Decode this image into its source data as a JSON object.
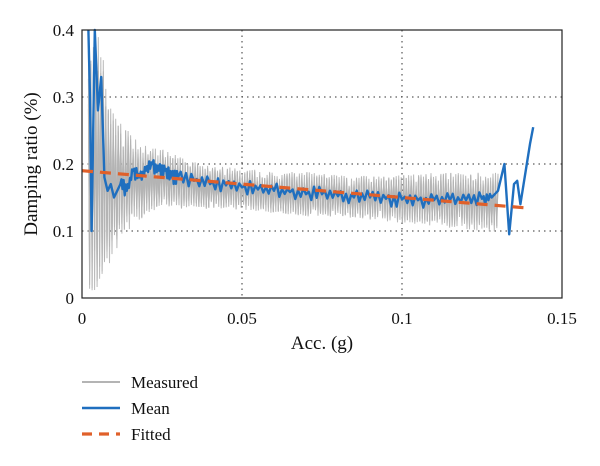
{
  "chart_data": {
    "type": "line",
    "title": "",
    "xlabel": "Acc. (g)",
    "ylabel": "Damping ratio (%)",
    "xlim": [
      0,
      0.15
    ],
    "ylim": [
      0,
      0.4
    ],
    "xticks": [
      0,
      0.05,
      0.1,
      0.15
    ],
    "yticks": [
      0,
      0.1,
      0.2,
      0.3,
      0.4
    ],
    "xtick_labels": [
      "0",
      "0.05",
      "0.1",
      "0.15"
    ],
    "ytick_labels": [
      "0",
      "0.1",
      "0.2",
      "0.3",
      "0.4"
    ],
    "grid": "dotted",
    "legend_position": "below-left",
    "series": [
      {
        "name": "Measured",
        "style": "thin-gray-band",
        "color": "#b4b4b4",
        "upper": [
          [
            0.002,
            0.4
          ],
          [
            0.004,
            0.4
          ],
          [
            0.006,
            0.4
          ],
          [
            0.008,
            0.32
          ],
          [
            0.01,
            0.28
          ],
          [
            0.015,
            0.25
          ],
          [
            0.02,
            0.23
          ],
          [
            0.025,
            0.225
          ],
          [
            0.03,
            0.215
          ],
          [
            0.035,
            0.205
          ],
          [
            0.04,
            0.2
          ],
          [
            0.05,
            0.195
          ],
          [
            0.06,
            0.19
          ],
          [
            0.07,
            0.19
          ],
          [
            0.08,
            0.185
          ],
          [
            0.09,
            0.185
          ],
          [
            0.1,
            0.185
          ],
          [
            0.11,
            0.19
          ],
          [
            0.12,
            0.19
          ],
          [
            0.13,
            0.19
          ]
        ],
        "lower": [
          [
            0.002,
            0.0
          ],
          [
            0.004,
            0.0
          ],
          [
            0.006,
            0.0
          ],
          [
            0.008,
            0.03
          ],
          [
            0.01,
            0.06
          ],
          [
            0.015,
            0.1
          ],
          [
            0.02,
            0.12
          ],
          [
            0.025,
            0.13
          ],
          [
            0.03,
            0.13
          ],
          [
            0.035,
            0.135
          ],
          [
            0.04,
            0.13
          ],
          [
            0.05,
            0.13
          ],
          [
            0.06,
            0.125
          ],
          [
            0.07,
            0.12
          ],
          [
            0.08,
            0.12
          ],
          [
            0.09,
            0.115
          ],
          [
            0.1,
            0.11
          ],
          [
            0.11,
            0.105
          ],
          [
            0.12,
            0.1
          ],
          [
            0.13,
            0.095
          ]
        ]
      },
      {
        "name": "Mean",
        "color": "#1f6fbf",
        "points": [
          [
            0.002,
            0.4
          ],
          [
            0.0025,
            0.3
          ],
          [
            0.003,
            0.1
          ],
          [
            0.0035,
            0.25
          ],
          [
            0.004,
            0.4
          ],
          [
            0.005,
            0.28
          ],
          [
            0.006,
            0.33
          ],
          [
            0.007,
            0.18
          ],
          [
            0.008,
            0.16
          ],
          [
            0.009,
            0.17
          ],
          [
            0.01,
            0.15
          ],
          [
            0.012,
            0.17
          ],
          [
            0.014,
            0.16
          ],
          [
            0.016,
            0.19
          ],
          [
            0.018,
            0.18
          ],
          [
            0.02,
            0.19
          ],
          [
            0.022,
            0.2
          ],
          [
            0.024,
            0.19
          ],
          [
            0.026,
            0.19
          ],
          [
            0.028,
            0.18
          ],
          [
            0.03,
            0.18
          ],
          [
            0.035,
            0.175
          ],
          [
            0.04,
            0.17
          ],
          [
            0.045,
            0.168
          ],
          [
            0.05,
            0.165
          ],
          [
            0.055,
            0.162
          ],
          [
            0.06,
            0.16
          ],
          [
            0.065,
            0.158
          ],
          [
            0.07,
            0.155
          ],
          [
            0.075,
            0.155
          ],
          [
            0.08,
            0.152
          ],
          [
            0.085,
            0.15
          ],
          [
            0.09,
            0.15
          ],
          [
            0.095,
            0.148
          ],
          [
            0.1,
            0.147
          ],
          [
            0.105,
            0.146
          ],
          [
            0.11,
            0.146
          ],
          [
            0.115,
            0.146
          ],
          [
            0.12,
            0.146
          ],
          [
            0.125,
            0.148
          ],
          [
            0.128,
            0.15
          ],
          [
            0.13,
            0.16
          ],
          [
            0.132,
            0.2
          ],
          [
            0.1335,
            0.095
          ],
          [
            0.135,
            0.17
          ],
          [
            0.136,
            0.175
          ],
          [
            0.137,
            0.14
          ],
          [
            0.138,
            0.17
          ],
          [
            0.139,
            0.2
          ],
          [
            0.14,
            0.23
          ],
          [
            0.141,
            0.255
          ]
        ]
      },
      {
        "name": "Fitted",
        "color": "#e0602a",
        "style": "dashed",
        "points": [
          [
            0.0,
            0.19
          ],
          [
            0.02,
            0.182
          ],
          [
            0.04,
            0.174
          ],
          [
            0.06,
            0.166
          ],
          [
            0.08,
            0.158
          ],
          [
            0.1,
            0.15
          ],
          [
            0.12,
            0.142
          ],
          [
            0.14,
            0.134
          ]
        ]
      }
    ]
  }
}
